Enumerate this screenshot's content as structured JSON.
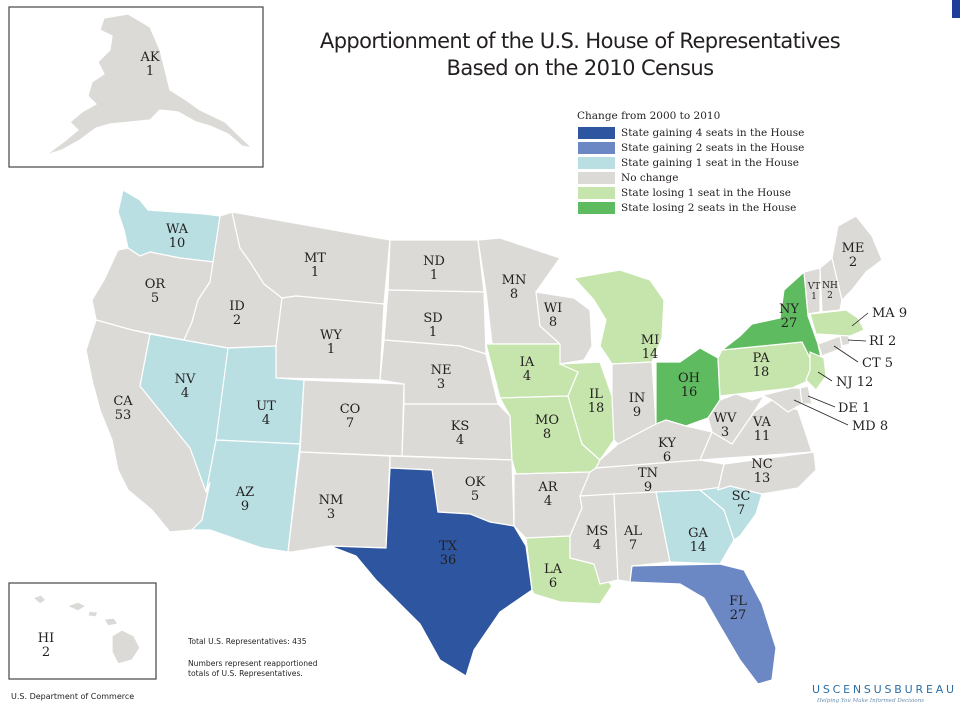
{
  "title": {
    "line1": "Apportionment of the U.S. House of Representatives",
    "line2": "Based on the 2010 Census"
  },
  "legend": {
    "heading": "Change from 2000 to 2010",
    "items": [
      {
        "key": "gain4",
        "label": "State gaining 4 seats in the House",
        "color": "#2e55a0"
      },
      {
        "key": "gain2",
        "label": "State gaining 2 seats in the House",
        "color": "#6b87c4"
      },
      {
        "key": "gain1",
        "label": "State gaining 1 seat in the House",
        "color": "#b9dfe2"
      },
      {
        "key": "none",
        "label": "No change",
        "color": "#dcdad6"
      },
      {
        "key": "lose1",
        "label": "State losing 1 seat in the House",
        "color": "#c6e5ad"
      },
      {
        "key": "lose2",
        "label": "State losing 2 seats in the House",
        "color": "#5fbb5f"
      }
    ]
  },
  "states": [
    {
      "abbr": "AK",
      "seats": "1",
      "change": "none"
    },
    {
      "abbr": "HI",
      "seats": "2",
      "change": "none"
    },
    {
      "abbr": "WA",
      "seats": "10",
      "change": "gain1"
    },
    {
      "abbr": "OR",
      "seats": "5",
      "change": "none"
    },
    {
      "abbr": "CA",
      "seats": "53",
      "change": "none"
    },
    {
      "abbr": "ID",
      "seats": "2",
      "change": "none"
    },
    {
      "abbr": "NV",
      "seats": "4",
      "change": "gain1"
    },
    {
      "abbr": "UT",
      "seats": "4",
      "change": "gain1"
    },
    {
      "abbr": "AZ",
      "seats": "9",
      "change": "gain1"
    },
    {
      "abbr": "MT",
      "seats": "1",
      "change": "none"
    },
    {
      "abbr": "WY",
      "seats": "1",
      "change": "none"
    },
    {
      "abbr": "CO",
      "seats": "7",
      "change": "none"
    },
    {
      "abbr": "NM",
      "seats": "3",
      "change": "none"
    },
    {
      "abbr": "ND",
      "seats": "1",
      "change": "none"
    },
    {
      "abbr": "SD",
      "seats": "1",
      "change": "none"
    },
    {
      "abbr": "NE",
      "seats": "3",
      "change": "none"
    },
    {
      "abbr": "KS",
      "seats": "4",
      "change": "none"
    },
    {
      "abbr": "OK",
      "seats": "5",
      "change": "none"
    },
    {
      "abbr": "TX",
      "seats": "36",
      "change": "gain4"
    },
    {
      "abbr": "MN",
      "seats": "8",
      "change": "none"
    },
    {
      "abbr": "IA",
      "seats": "4",
      "change": "lose1"
    },
    {
      "abbr": "MO",
      "seats": "8",
      "change": "lose1"
    },
    {
      "abbr": "AR",
      "seats": "4",
      "change": "none"
    },
    {
      "abbr": "LA",
      "seats": "6",
      "change": "lose1"
    },
    {
      "abbr": "WI",
      "seats": "8",
      "change": "none"
    },
    {
      "abbr": "IL",
      "seats": "18",
      "change": "lose1"
    },
    {
      "abbr": "MI",
      "seats": "14",
      "change": "lose1"
    },
    {
      "abbr": "IN",
      "seats": "9",
      "change": "none"
    },
    {
      "abbr": "OH",
      "seats": "16",
      "change": "lose2"
    },
    {
      "abbr": "KY",
      "seats": "6",
      "change": "none"
    },
    {
      "abbr": "TN",
      "seats": "9",
      "change": "none"
    },
    {
      "abbr": "MS",
      "seats": "4",
      "change": "none"
    },
    {
      "abbr": "AL",
      "seats": "7",
      "change": "none"
    },
    {
      "abbr": "GA",
      "seats": "14",
      "change": "gain1"
    },
    {
      "abbr": "FL",
      "seats": "27",
      "change": "gain2"
    },
    {
      "abbr": "SC",
      "seats": "7",
      "change": "gain1"
    },
    {
      "abbr": "NC",
      "seats": "13",
      "change": "none"
    },
    {
      "abbr": "VA",
      "seats": "11",
      "change": "none"
    },
    {
      "abbr": "WV",
      "seats": "3",
      "change": "none"
    },
    {
      "abbr": "PA",
      "seats": "18",
      "change": "lose1"
    },
    {
      "abbr": "NY",
      "seats": "27",
      "change": "lose2"
    },
    {
      "abbr": "NJ",
      "seats": "12",
      "change": "lose1"
    },
    {
      "abbr": "DE",
      "seats": "1",
      "change": "none"
    },
    {
      "abbr": "MD",
      "seats": "8",
      "change": "none"
    },
    {
      "abbr": "CT",
      "seats": "5",
      "change": "none"
    },
    {
      "abbr": "RI",
      "seats": "2",
      "change": "none"
    },
    {
      "abbr": "MA",
      "seats": "9",
      "change": "lose1"
    },
    {
      "abbr": "VT",
      "seats": "1",
      "change": "none"
    },
    {
      "abbr": "NH",
      "seats": "2",
      "change": "none"
    },
    {
      "abbr": "ME",
      "seats": "2",
      "change": "none"
    }
  ],
  "footnotes": {
    "total": "Total U.S. Representatives: 435",
    "note_line1": "Numbers represent reapportioned",
    "note_line2": "totals of U.S. Representatives."
  },
  "footer": {
    "department": "U.S. Department of Commerce",
    "bureau": "USCENSUSBUREAU",
    "tagline": "Helping You Make Informed Decisions"
  },
  "colors": {
    "border": "#ffffff",
    "inset_frame": "#444444"
  }
}
